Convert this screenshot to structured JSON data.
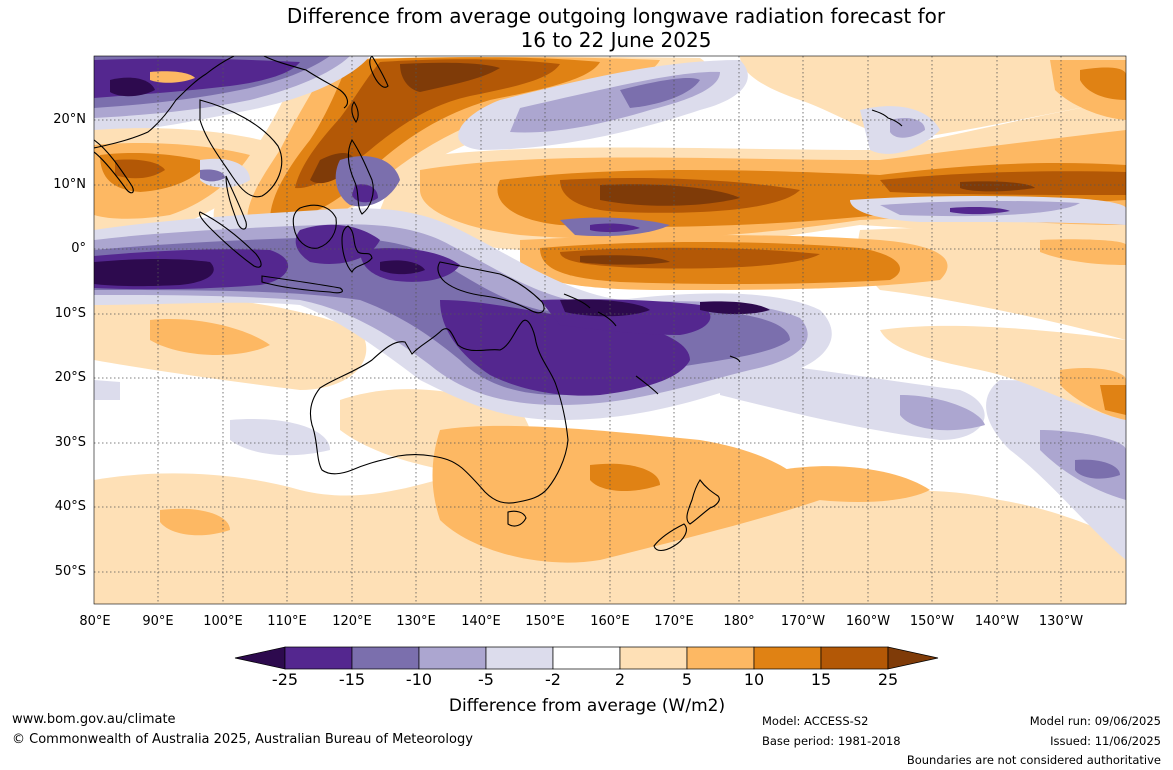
{
  "title": {
    "line1": "Difference from average outgoing longwave radiation forecast for",
    "line2": "16 to 22 June 2025"
  },
  "map": {
    "lat_labels": [
      "20°N",
      "10°N",
      "0°",
      "10°S",
      "20°S",
      "30°S",
      "40°S",
      "50°S"
    ],
    "lon_labels": [
      "80°E",
      "90°E",
      "100°E",
      "110°E",
      "120°E",
      "130°E",
      "140°E",
      "150°E",
      "160°E",
      "170°E",
      "180°",
      "170°W",
      "160°W",
      "150°W",
      "140°W",
      "130°W"
    ],
    "palette": {
      "lt-25": "#2d0a4e",
      "-25_-15": "#54278f",
      "-15_-10": "#7b6fad",
      "-10_-5": "#aca6d0",
      "-5_-2": "#dcdcec",
      "-2_2": "#ffffff",
      "2_5": "#fee0b6",
      "5_10": "#fdb863",
      "10_15": "#e08214",
      "15_25": "#b35806",
      "gt25": "#7f3b08"
    }
  },
  "colorbar": {
    "ticks": [
      "-25",
      "-15",
      "-10",
      "-5",
      "-2",
      "2",
      "5",
      "10",
      "15",
      "25"
    ],
    "label": "Difference from average (W/m2)"
  },
  "footer": {
    "website": "www.bom.gov.au/climate",
    "copyright": "© Commonwealth of Australia 2025, Australian Bureau of Meteorology",
    "model": "Model: ACCESS-S2",
    "base_period": "Base period: 1981-2018",
    "model_run": "Model run: 09/06/2025",
    "issued": "Issued: 11/06/2025",
    "boundaries": "Boundaries are not considered authoritative"
  }
}
